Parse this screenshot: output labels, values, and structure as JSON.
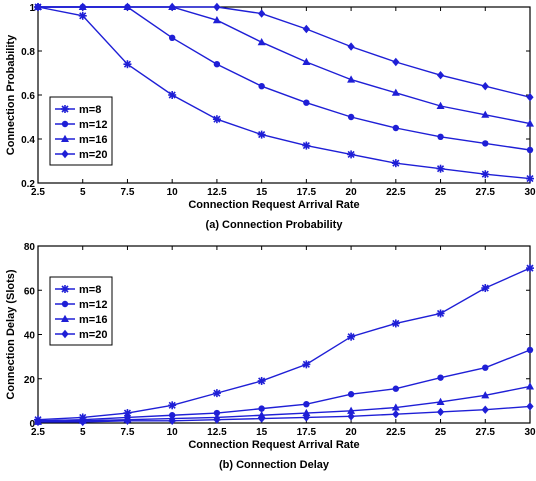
{
  "chart_data": [
    {
      "type": "line",
      "caption": "(a) Connection Probability",
      "xlabel": "Connection Request Arrival Rate",
      "ylabel": "Connection Probability",
      "x": [
        2.5,
        5,
        7.5,
        10,
        12.5,
        15,
        17.5,
        20,
        22.5,
        25,
        27.5,
        30
      ],
      "x_tick_labels": [
        "2.5",
        "5",
        "7.5",
        "10",
        "12.5",
        "15",
        "17.5",
        "20",
        "22.5",
        "25",
        "27.5",
        "30"
      ],
      "y_ticks": [
        0.2,
        0.4,
        0.6,
        0.8,
        1
      ],
      "y_tick_labels": [
        "0.2",
        "0.4",
        "0.6",
        "0.8",
        "1"
      ],
      "xlim": [
        2.5,
        30
      ],
      "ylim": [
        0.2,
        1
      ],
      "grid": false,
      "legend_position": "middle-left",
      "color": "#1f1fd6",
      "series": [
        {
          "name": "m=8",
          "marker": "star",
          "values": [
            1.0,
            0.96,
            0.74,
            0.6,
            0.49,
            0.42,
            0.37,
            0.33,
            0.29,
            0.265,
            0.24,
            0.22
          ]
        },
        {
          "name": "m=12",
          "marker": "circle",
          "values": [
            1.0,
            1.0,
            1.0,
            0.86,
            0.74,
            0.64,
            0.565,
            0.5,
            0.45,
            0.41,
            0.38,
            0.35
          ]
        },
        {
          "name": "m=16",
          "marker": "triangle",
          "values": [
            1.0,
            1.0,
            1.0,
            1.0,
            0.94,
            0.84,
            0.75,
            0.67,
            0.61,
            0.55,
            0.51,
            0.47
          ]
        },
        {
          "name": "m=20",
          "marker": "diamond",
          "values": [
            1.0,
            1.0,
            1.0,
            1.0,
            1.0,
            0.97,
            0.9,
            0.82,
            0.75,
            0.69,
            0.64,
            0.59
          ]
        }
      ]
    },
    {
      "type": "line",
      "caption": "(b) Connection Delay",
      "xlabel": "Connection Request Arrival Rate",
      "ylabel": "Connection Delay (Slots)",
      "x": [
        2.5,
        5,
        7.5,
        10,
        12.5,
        15,
        17.5,
        20,
        22.5,
        25,
        27.5,
        30
      ],
      "x_tick_labels": [
        "2.5",
        "5",
        "7.5",
        "10",
        "12.5",
        "15",
        "17.5",
        "20",
        "22.5",
        "25",
        "27.5",
        "30"
      ],
      "y_ticks": [
        0,
        20,
        40,
        60,
        80
      ],
      "y_tick_labels": [
        "0",
        "20",
        "40",
        "60",
        "80"
      ],
      "xlim": [
        2.5,
        30
      ],
      "ylim": [
        0,
        80
      ],
      "grid": false,
      "legend_position": "upper-left",
      "color": "#1f1fd6",
      "series": [
        {
          "name": "m=8",
          "marker": "star",
          "values": [
            1.5,
            2.5,
            4.5,
            8,
            13.5,
            19,
            26.5,
            39,
            45,
            49.5,
            61,
            70
          ]
        },
        {
          "name": "m=12",
          "marker": "circle",
          "values": [
            1,
            1.5,
            2.5,
            3.5,
            4.5,
            6.5,
            8.5,
            13,
            15.5,
            20.5,
            25,
            33
          ]
        },
        {
          "name": "m=16",
          "marker": "triangle",
          "values": [
            0.5,
            1,
            1.5,
            2,
            2.5,
            3.5,
            4.5,
            5.5,
            7,
            9.5,
            12.5,
            16.5
          ]
        },
        {
          "name": "m=20",
          "marker": "diamond",
          "values": [
            0.5,
            0.5,
            1,
            1,
            1.5,
            2,
            2.5,
            3,
            4,
            5,
            6,
            7.5
          ]
        }
      ]
    }
  ]
}
